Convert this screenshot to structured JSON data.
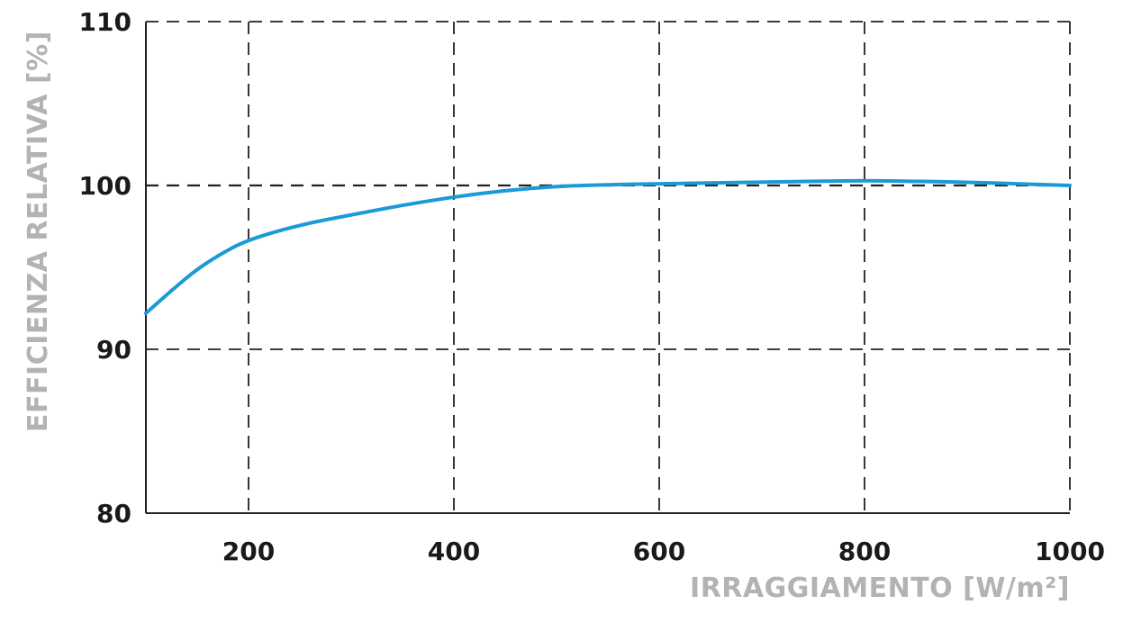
{
  "chart_data": {
    "type": "line",
    "title": "",
    "xlabel": "IRRAGGIAMENTO [W/m²]",
    "ylabel": "EFFICIENZA RELATIVA [%]",
    "xlim": [
      100,
      1000
    ],
    "ylim": [
      80,
      110
    ],
    "x_ticks": [
      200,
      400,
      600,
      800,
      1000
    ],
    "y_ticks": [
      80,
      90,
      100,
      110
    ],
    "x_tick_labels": [
      "200",
      "400",
      "600",
      "800",
      "1000"
    ],
    "y_tick_labels": [
      "80",
      "90",
      "100",
      "110"
    ],
    "grid": true,
    "grid_style": "dashed",
    "legend": "none",
    "series": [
      {
        "color": "#1a9ad6",
        "x": [
          100,
          125,
          150,
          175,
          200,
          250,
          300,
          350,
          400,
          450,
          500,
          550,
          600,
          650,
          700,
          750,
          800,
          850,
          900,
          950,
          1000
        ],
        "y": [
          92.2,
          93.6,
          94.9,
          95.9,
          96.7,
          97.6,
          98.2,
          98.8,
          99.3,
          99.7,
          99.95,
          100.05,
          100.1,
          100.15,
          100.2,
          100.25,
          100.3,
          100.25,
          100.2,
          100.1,
          100.0
        ]
      }
    ]
  }
}
